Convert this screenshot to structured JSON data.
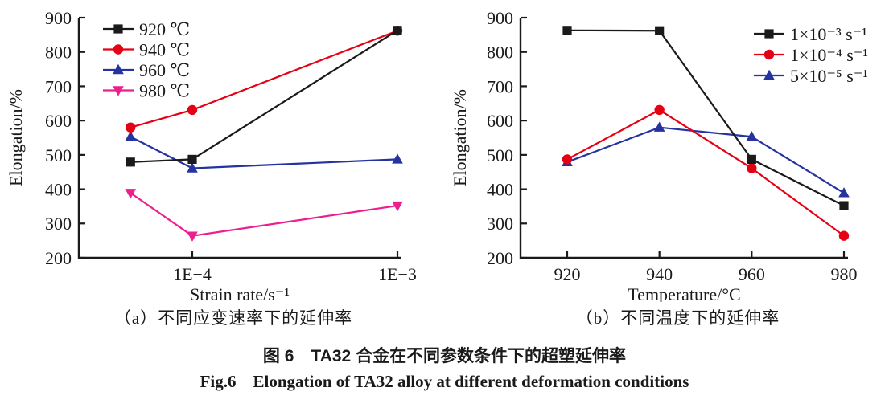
{
  "figure": {
    "caption_zh": "图 6　TA32 合金在不同参数条件下的超塑延伸率",
    "caption_en": "Fig.6　Elongation of TA32 alloy at different deformation conditions"
  },
  "colors": {
    "axis": "#1a1a1a",
    "black": "#1a1a1a",
    "red": "#e60014",
    "blue": "#2433a0",
    "magenta": "#ed1e8e"
  },
  "chart_data": [
    {
      "id": "a",
      "type": "line",
      "caption": "（a）不同应变速率下的延伸率",
      "xlabel": "Strain rate/s⁻¹",
      "ylabel": "Elongation/%",
      "x_scale": "log",
      "x": [
        5e-05,
        0.0001,
        0.001
      ],
      "x_ticks": [
        {
          "value": 0.0001,
          "label": "1E−4"
        },
        {
          "value": 0.001,
          "label": "1E−3"
        }
      ],
      "ylim": [
        200,
        900
      ],
      "y_ticks": [
        200,
        300,
        400,
        500,
        600,
        700,
        800,
        900
      ],
      "grid": false,
      "legend_position": "top-left",
      "series": [
        {
          "name": "920 ℃",
          "marker": "square",
          "color": "#1a1a1a",
          "values": [
            479,
            487,
            863
          ]
        },
        {
          "name": "940 ℃",
          "marker": "circle",
          "color": "#e60014",
          "values": [
            580,
            631,
            862
          ]
        },
        {
          "name": "960 ℃",
          "marker": "triangle-up",
          "color": "#2433a0",
          "values": [
            553,
            461,
            487
          ]
        },
        {
          "name": "980 ℃",
          "marker": "triangle-down",
          "color": "#ed1e8e",
          "values": [
            389,
            264,
            352
          ]
        }
      ]
    },
    {
      "id": "b",
      "type": "line",
      "caption": "（b）不同温度下的延伸率",
      "xlabel": "Temperature/°C",
      "ylabel": "Elongation/%",
      "x_scale": "linear",
      "x": [
        920,
        940,
        960,
        980
      ],
      "x_ticks": [
        {
          "value": 920,
          "label": "920"
        },
        {
          "value": 940,
          "label": "940"
        },
        {
          "value": 960,
          "label": "960"
        },
        {
          "value": 980,
          "label": "980"
        }
      ],
      "ylim": [
        200,
        900
      ],
      "y_ticks": [
        200,
        300,
        400,
        500,
        600,
        700,
        800,
        900
      ],
      "grid": false,
      "legend_position": "top-right",
      "series": [
        {
          "name": "1×10⁻³ s⁻¹",
          "marker": "square",
          "color": "#1a1a1a",
          "values": [
            863,
            862,
            487,
            352
          ]
        },
        {
          "name": "1×10⁻⁴ s⁻¹",
          "marker": "circle",
          "color": "#e60014",
          "values": [
            487,
            631,
            461,
            264
          ]
        },
        {
          "name": "5×10⁻⁵ s⁻¹",
          "marker": "triangle-up",
          "color": "#2433a0",
          "values": [
            479,
            580,
            553,
            389
          ]
        }
      ]
    }
  ]
}
